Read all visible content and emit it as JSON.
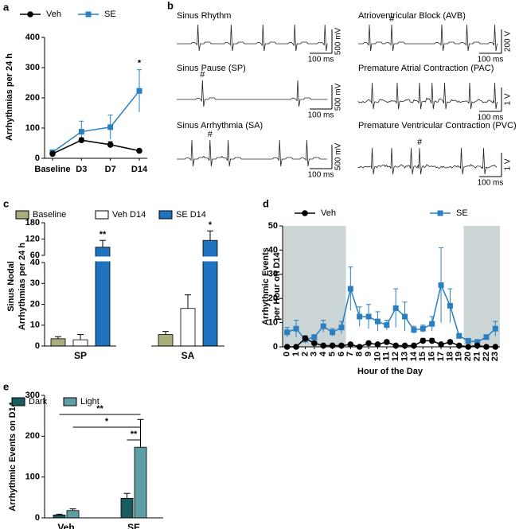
{
  "panel_labels": [
    "a",
    "b",
    "c",
    "d",
    "e"
  ],
  "ecg_traces": [
    {
      "title": "Sinus Rhythm",
      "y_scale": "500 mV",
      "x_scale": "100 ms"
    },
    {
      "title": "Sinus Pause (SP)",
      "marker": "#",
      "y_scale": "500 mV",
      "x_scale": "100 ms"
    },
    {
      "title": "Sinus Arrhythmia (SA)",
      "marker": "#",
      "y_scale": "500 mV",
      "x_scale": "100 ms"
    },
    {
      "title": "Atrioventricular Block (AVB)",
      "marker": "#",
      "y_scale": "200 V",
      "x_scale": "100 ms"
    },
    {
      "title": "Premature Atrial Contraction (PAC)",
      "y_scale": "1 V",
      "x_scale": "100 ms"
    },
    {
      "title": "Premature Ventricular Contraction (PVC)",
      "marker": "#",
      "y_scale": "1 V",
      "x_scale": "100 ms"
    }
  ],
  "chart_data": [
    {
      "type": "line",
      "ylabel": [
        "Arrhythmias per 24 h"
      ],
      "categories": [
        "Baseline",
        "D3",
        "D7",
        "D14"
      ],
      "series": [
        {
          "name": "Veh",
          "color": "#000000",
          "marker": "circle",
          "values": [
            15,
            60,
            45,
            25
          ],
          "errors": [
            5,
            8,
            10,
            3
          ]
        },
        {
          "name": "SE",
          "color": "#2a7fc1",
          "marker": "square",
          "values": [
            20,
            88,
            103,
            223
          ],
          "errors": [
            5,
            35,
            40,
            70
          ]
        }
      ],
      "ylim": [
        0,
        400
      ],
      "yticks": [
        0,
        100,
        200,
        300,
        400
      ],
      "annotations": [
        {
          "label": "*",
          "category": "D14"
        }
      ]
    },
    {
      "type": "bar",
      "ylabel": [
        "Sinus Nodal",
        "Arrhythmias per 24 h"
      ],
      "categories": [
        "SP",
        "SA"
      ],
      "series": [
        {
          "name": "Baseline",
          "color": "#a9ac7b",
          "values": [
            3.5,
            5.5
          ],
          "errors": [
            1,
            1.5
          ]
        },
        {
          "name": "Veh D14",
          "color": "#ffffff",
          "values": [
            3,
            18
          ],
          "errors": [
            2.5,
            6.5
          ]
        },
        {
          "name": "SE D14",
          "color": "#1f72bd",
          "values": [
            90,
            115
          ],
          "errors": [
            25,
            35
          ]
        }
      ],
      "ylim": [
        0,
        180
      ],
      "ybreak": [
        40,
        60
      ],
      "yticks": [
        0,
        10,
        20,
        30,
        40,
        60,
        120,
        180
      ],
      "annotations": [
        {
          "label": "**",
          "category": "SP"
        },
        {
          "label": "*",
          "category": "SA"
        }
      ]
    },
    {
      "type": "line",
      "ylabel": [
        "Arrhythmic Events",
        "per Hour on D14"
      ],
      "xlabel": "Hour of the Day",
      "x": [
        0,
        1,
        2,
        3,
        4,
        5,
        6,
        7,
        8,
        9,
        10,
        11,
        12,
        13,
        14,
        15,
        16,
        17,
        18,
        19,
        20,
        21,
        22,
        23
      ],
      "series": [
        {
          "name": "Veh",
          "color": "#000000",
          "marker": "circle",
          "values": [
            0,
            0,
            3.5,
            1.5,
            0.5,
            0.5,
            0.5,
            1,
            0,
            1.5,
            1,
            2,
            0.5,
            0.5,
            0.5,
            2.5,
            2.5,
            1,
            2,
            0.5,
            0,
            0.5,
            0,
            0
          ],
          "errors": [
            0.3,
            0.3,
            1,
            0.8,
            0.3,
            0.3,
            0.3,
            0.5,
            0.3,
            0.5,
            0.5,
            0.8,
            0.3,
            0.3,
            0.3,
            1,
            1,
            0.5,
            0.8,
            0.3,
            0.3,
            0.3,
            0.3,
            0.3
          ]
        },
        {
          "name": "SE",
          "color": "#2a7fc1",
          "marker": "square",
          "values": [
            6,
            7.5,
            3,
            4,
            8.5,
            6,
            8,
            24,
            12.5,
            12.5,
            10.5,
            9,
            16,
            12.5,
            7,
            7.5,
            9.5,
            25.5,
            17,
            4.5,
            2.5,
            2,
            4,
            7.5
          ],
          "errors": [
            2,
            3.5,
            1.5,
            1,
            2.5,
            1.5,
            2.5,
            9,
            4,
            5,
            4,
            2,
            8,
            6,
            1.5,
            1.5,
            3,
            15.5,
            7,
            1,
            0.5,
            1,
            1,
            3
          ]
        }
      ],
      "xlim": [
        -0.5,
        23.5
      ],
      "xticks": [
        0,
        1,
        2,
        3,
        4,
        5,
        6,
        7,
        8,
        9,
        10,
        11,
        12,
        13,
        14,
        15,
        16,
        17,
        18,
        19,
        20,
        21,
        22,
        23
      ],
      "ylim": [
        0,
        50
      ],
      "yticks": [
        0,
        10,
        20,
        30,
        40,
        50
      ],
      "shaded": [
        [
          -0.5,
          6.5
        ],
        [
          19.5,
          23.5
        ]
      ],
      "shade_color": "#cbd5d5"
    },
    {
      "type": "bar",
      "ylabel": [
        "Arrhythmic Events on D14"
      ],
      "categories": [
        "Veh",
        "SE"
      ],
      "series": [
        {
          "name": "Dark",
          "color": "#1b5b5f",
          "values": [
            7,
            48
          ],
          "errors": [
            2,
            12
          ]
        },
        {
          "name": "Light",
          "color": "#5e9ea5",
          "values": [
            18,
            173
          ],
          "errors": [
            4,
            68
          ]
        }
      ],
      "ylim": [
        0,
        300
      ],
      "yticks": [
        0,
        100,
        200,
        300
      ],
      "brackets": [
        "**",
        "*",
        "**"
      ]
    }
  ]
}
